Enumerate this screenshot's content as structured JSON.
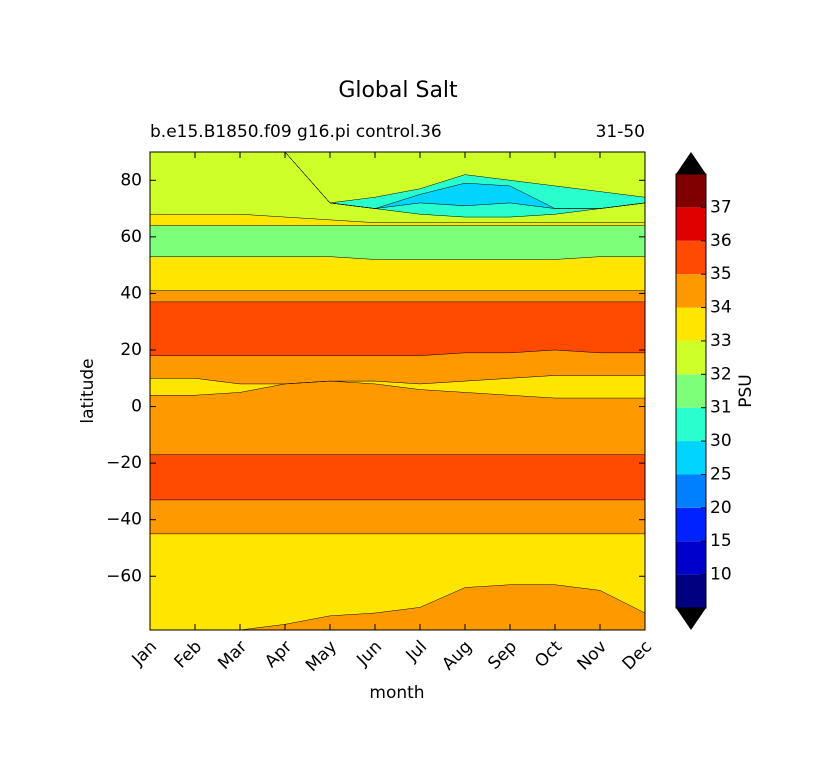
{
  "chart_data": {
    "type": "contourf",
    "title": "Global Salt",
    "subtitle": "b.e15.B1850.f09 g16.pi control.36",
    "subtitle_right": "31-50",
    "x_label": "month",
    "y_label": "latitude",
    "categories": [
      "Jan",
      "Feb",
      "Mar",
      "Apr",
      "May",
      "Jun",
      "Jul",
      "Aug",
      "Sep",
      "Oct",
      "Nov",
      "Dec"
    ],
    "ylim": [
      -79,
      90
    ],
    "yticks": [
      {
        "value": -60,
        "label": "−60"
      },
      {
        "value": -40,
        "label": "−40"
      },
      {
        "value": -20,
        "label": "−20"
      },
      0,
      20,
      40,
      60,
      80
    ],
    "fill_levels": [
      34,
      33,
      34,
      35,
      34,
      33,
      34,
      35,
      34,
      33,
      31,
      33,
      32,
      30,
      25,
      30,
      32
    ],
    "boundaries": [
      [
        -79,
        -79,
        -79,
        -77,
        -74,
        -73,
        -71,
        -64,
        -63,
        -63,
        -65,
        -73
      ],
      [
        -45,
        -45,
        -45,
        -45,
        -45,
        -45,
        -45,
        -45,
        -45,
        -45,
        -45,
        -45
      ],
      [
        -33,
        -33,
        -33,
        -33,
        -33,
        -33,
        -33,
        -33,
        -33,
        -33,
        -33,
        -33
      ],
      [
        -17,
        -17,
        -17,
        -17,
        -17,
        -17,
        -17,
        -17,
        -17,
        -17,
        -17,
        -17
      ],
      [
        4,
        4,
        5,
        8,
        9,
        8,
        6,
        5,
        4,
        3,
        3,
        3
      ],
      [
        10,
        10,
        8,
        8,
        9,
        9,
        8,
        9,
        10,
        11,
        11,
        11
      ],
      [
        18,
        18,
        18,
        18,
        18,
        18,
        18,
        19,
        19,
        20,
        19,
        19
      ],
      [
        37,
        37,
        37,
        37,
        37,
        37,
        37,
        37,
        37,
        37,
        37,
        37
      ],
      [
        41,
        41,
        41,
        41,
        41,
        41,
        41,
        41,
        41,
        41,
        41,
        41
      ],
      [
        53,
        53,
        53,
        53,
        53,
        52,
        52,
        52,
        52,
        52,
        53,
        53
      ],
      [
        64,
        64,
        64,
        64,
        64,
        64,
        64,
        64,
        64,
        64,
        64,
        64
      ],
      [
        68,
        68,
        68,
        67,
        66,
        65,
        65,
        65,
        65,
        65,
        65,
        65
      ],
      [
        90,
        90,
        90,
        90,
        72,
        70,
        68,
        67,
        67,
        68,
        70,
        72
      ],
      [
        90,
        90,
        90,
        90,
        72,
        70,
        72,
        71,
        72,
        70,
        70,
        72
      ],
      [
        90,
        90,
        90,
        90,
        72,
        70,
        75,
        79,
        78,
        70,
        70,
        72
      ],
      [
        90,
        90,
        90,
        90,
        72,
        74,
        77,
        82,
        80,
        78,
        76,
        74
      ]
    ],
    "colorbar": {
      "label": "PSU",
      "ticks": [
        10,
        15,
        20,
        25,
        30,
        31,
        32,
        33,
        34,
        35,
        36,
        37
      ],
      "colors": [
        "#000080",
        "#0000cd",
        "#0022ff",
        "#0080ff",
        "#00d4ff",
        "#29ffce",
        "#7dff7a",
        "#ceff29",
        "#ffe600",
        "#ff9900",
        "#ff4a00",
        "#e00000",
        "#800000"
      ],
      "extend_color": "#000000"
    }
  }
}
